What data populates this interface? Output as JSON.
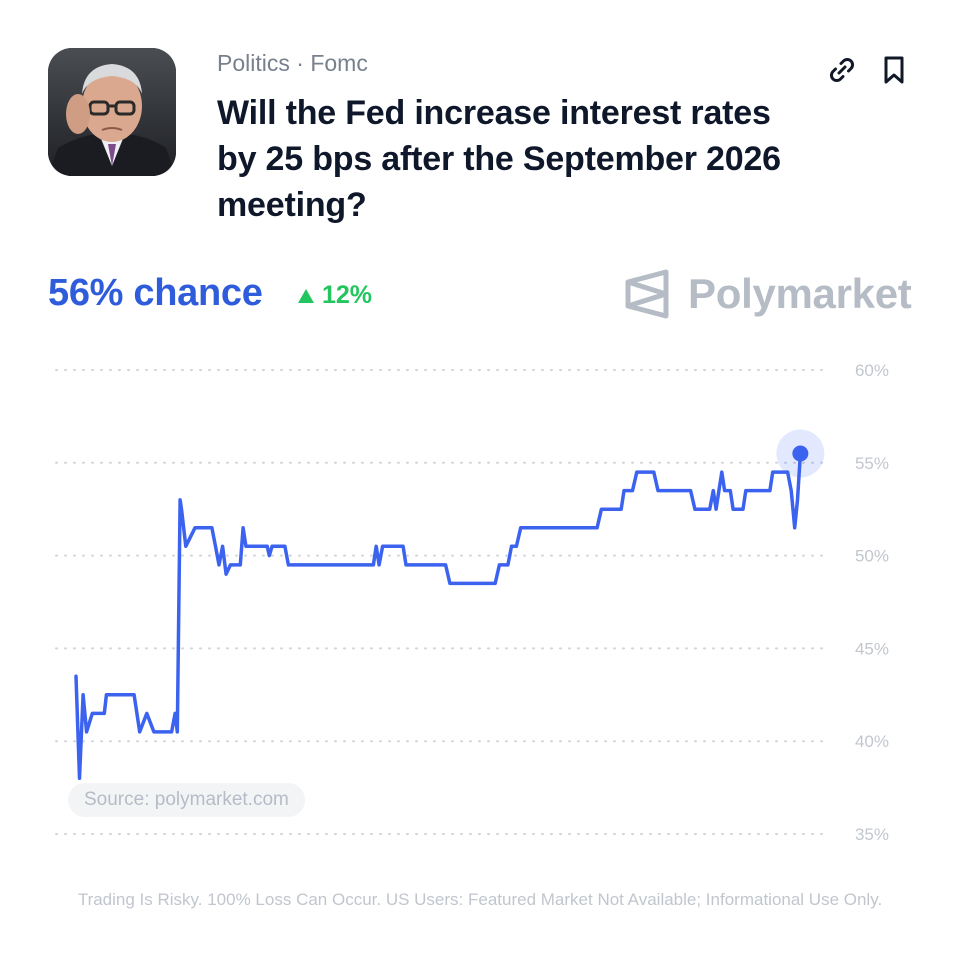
{
  "header": {
    "category": "Politics",
    "separator": " · ",
    "subcategory": "Fomc",
    "title": "Will the Fed increase interest rates by 25 bps after the September 2026 meeting?"
  },
  "summary": {
    "chance_text": "56% chance",
    "change_text": "12%",
    "change_direction": "up"
  },
  "brand": {
    "name": "Polymarket"
  },
  "source_label": "Source: polymarket.com",
  "disclaimer": "Trading Is Risky. 100% Loss Can Occur. US Users: Featured Market Not Available; Informational Use Only.",
  "colors": {
    "accent": "#2e5cdb",
    "line": "#3c63ef",
    "up": "#22c55e",
    "grid": "#cfd4db",
    "tick_text": "#c2c7ce"
  },
  "icons": {
    "link": "link-icon",
    "bookmark": "bookmark-icon",
    "change": "triangle-up-icon"
  },
  "chart_data": {
    "type": "line",
    "title": "",
    "xlabel": "",
    "ylabel": "",
    "ylim": [
      35,
      60
    ],
    "y_ticks": [
      60,
      55,
      50,
      45,
      40,
      35
    ],
    "y_tick_labels": [
      "60%",
      "55%",
      "50%",
      "45%",
      "40%",
      "35%"
    ],
    "grid": true,
    "x_range": [
      0,
      100
    ],
    "series": [
      {
        "values": [
          [
            0,
            43.5
          ],
          [
            0.5,
            38
          ],
          [
            1,
            42.5
          ],
          [
            1.5,
            40.5
          ],
          [
            2.3,
            41.5
          ],
          [
            4,
            41.5
          ],
          [
            4.3,
            42.5
          ],
          [
            8.2,
            42.5
          ],
          [
            9,
            40.5
          ],
          [
            10,
            41.5
          ],
          [
            11,
            40.5
          ],
          [
            13.5,
            40.5
          ],
          [
            14,
            41.5
          ],
          [
            14.3,
            40.5
          ],
          [
            14.7,
            53
          ],
          [
            14.9,
            52.5
          ],
          [
            15.5,
            50.5
          ],
          [
            16.8,
            51.5
          ],
          [
            19.2,
            51.5
          ],
          [
            19.7,
            50.5
          ],
          [
            20.2,
            49.5
          ],
          [
            20.7,
            50.5
          ],
          [
            21.2,
            49
          ],
          [
            21.8,
            49.5
          ],
          [
            23.2,
            49.5
          ],
          [
            23.6,
            51.5
          ],
          [
            24,
            50.5
          ],
          [
            27,
            50.5
          ],
          [
            27.3,
            50
          ],
          [
            27.7,
            50.5
          ],
          [
            29.5,
            50.5
          ],
          [
            30,
            49.5
          ],
          [
            42,
            49.5
          ],
          [
            42.4,
            50.5
          ],
          [
            42.8,
            49.5
          ],
          [
            43.3,
            50.5
          ],
          [
            46.2,
            50.5
          ],
          [
            46.6,
            49.5
          ],
          [
            52.2,
            49.5
          ],
          [
            52.8,
            48.5
          ],
          [
            59.2,
            48.5
          ],
          [
            59.8,
            49.5
          ],
          [
            61,
            49.5
          ],
          [
            61.5,
            50.5
          ],
          [
            62.2,
            50.5
          ],
          [
            62.8,
            51.5
          ],
          [
            73.6,
            51.5
          ],
          [
            74.2,
            52.5
          ],
          [
            77,
            52.5
          ],
          [
            77.4,
            53.5
          ],
          [
            78.6,
            53.5
          ],
          [
            79.2,
            54.5
          ],
          [
            81.6,
            54.5
          ],
          [
            82.2,
            53.5
          ],
          [
            86.8,
            53.5
          ],
          [
            87.4,
            52.5
          ],
          [
            89.5,
            52.5
          ],
          [
            90,
            53.5
          ],
          [
            90.4,
            52.5
          ],
          [
            90.8,
            53.5
          ],
          [
            91.2,
            54.5
          ],
          [
            91.6,
            53.5
          ],
          [
            92.4,
            53.5
          ],
          [
            92.8,
            52.5
          ],
          [
            94.2,
            52.5
          ],
          [
            94.6,
            53.5
          ],
          [
            98,
            53.5
          ],
          [
            98.4,
            54.5
          ],
          [
            100.5,
            54.5
          ],
          [
            101,
            53.5
          ],
          [
            101.5,
            51.5
          ],
          [
            101.9,
            53
          ],
          [
            102.3,
            55.5
          ]
        ]
      }
    ]
  }
}
